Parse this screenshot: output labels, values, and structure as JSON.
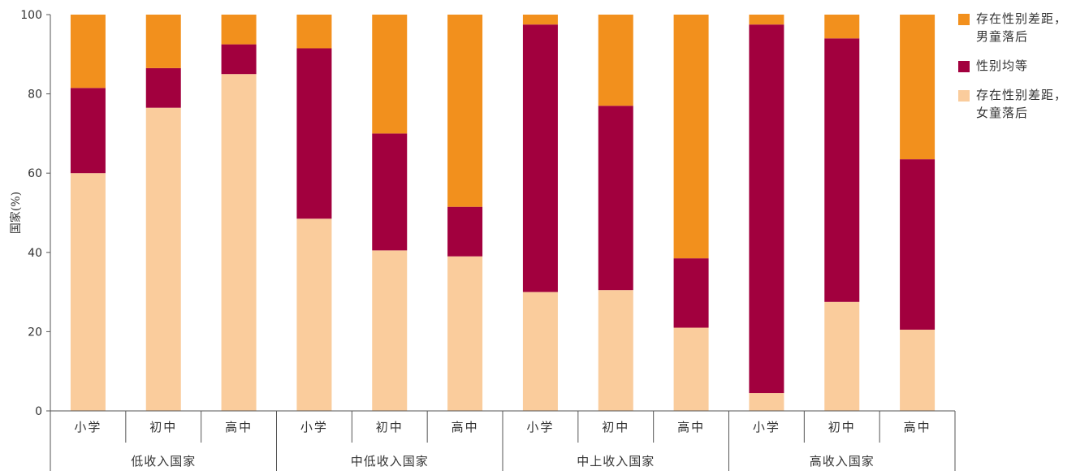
{
  "colors": {
    "boys_behind": "#F2901D",
    "parity": "#A2003E",
    "girls_behind": "#FACC9C",
    "axis": "#555555"
  },
  "chart_data": {
    "type": "bar",
    "stacked": true,
    "ylabel": "国家(%)",
    "ylim": [
      0,
      100
    ],
    "yticks": [
      0,
      20,
      40,
      60,
      80,
      100
    ],
    "groups": [
      {
        "label": "低收入国家",
        "categories": [
          "小学",
          "初中",
          "高中"
        ]
      },
      {
        "label": "中低收入国家",
        "categories": [
          "小学",
          "初中",
          "高中"
        ]
      },
      {
        "label": "中上收入国家",
        "categories": [
          "小学",
          "初中",
          "高中"
        ]
      },
      {
        "label": "高收入国家",
        "categories": [
          "小学",
          "初中",
          "高中"
        ]
      }
    ],
    "series": [
      {
        "name": "存在性别差距，\n女童落后",
        "key": "girls_behind",
        "values": [
          60,
          76.5,
          85,
          48.5,
          40.5,
          39,
          30,
          30.5,
          21,
          4.5,
          27.5,
          20.5
        ]
      },
      {
        "name": "性别均等",
        "key": "parity",
        "values": [
          21.5,
          10,
          7.5,
          43,
          29.5,
          12.5,
          67.5,
          46.5,
          17.5,
          93,
          66.5,
          43
        ]
      },
      {
        "name": "存在性别差距，\n男童落后",
        "key": "boys_behind",
        "values": [
          18.5,
          13.5,
          7.5,
          8.5,
          30,
          48.5,
          2.5,
          23,
          61.5,
          2.5,
          6,
          36.5
        ]
      }
    ]
  },
  "legend": [
    {
      "label": "存在性别差距，\n男童落后",
      "color_key": "boys_behind"
    },
    {
      "label": "性别均等",
      "color_key": "parity"
    },
    {
      "label": "存在性别差距，\n女童落后",
      "color_key": "girls_behind"
    }
  ]
}
